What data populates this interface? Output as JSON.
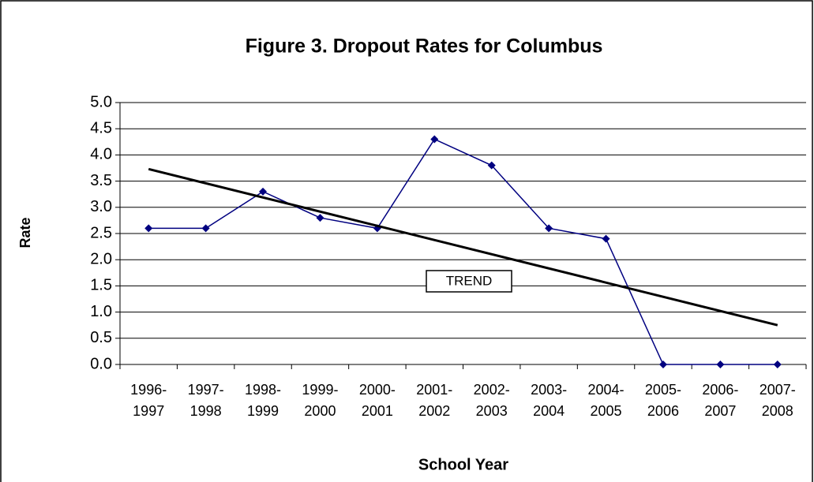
{
  "chart_data": {
    "type": "line",
    "title": "Figure 3. Dropout Rates for Columbus",
    "x_label": "School Year",
    "y_label": "Rate",
    "categories": [
      "1996-\n1997",
      "1997-\n1998",
      "1998-\n1999",
      "1999-\n2000",
      "2000-\n2001",
      "2001-\n2002",
      "2002-\n2003",
      "2003-\n2004",
      "2004-\n2005",
      "2005-\n2006",
      "2006-\n2007",
      "2007-\n2008"
    ],
    "series": [
      {
        "name": "Dropout Rate",
        "color": "#000080",
        "values": [
          2.6,
          2.6,
          3.3,
          2.8,
          2.6,
          4.3,
          3.8,
          2.6,
          2.4,
          0,
          0,
          0
        ]
      }
    ],
    "trend": {
      "label": "TREND",
      "color": "#000000",
      "start": 3.73,
      "end": 0.75
    },
    "ylim": [
      0,
      5
    ],
    "yticks": [
      {
        "value": 0,
        "label": "0.0"
      },
      {
        "value": 0.5,
        "label": "0.5"
      },
      {
        "value": 1,
        "label": "1.0"
      },
      {
        "value": 1.5,
        "label": "1.5"
      },
      {
        "value": 2,
        "label": "2.0"
      },
      {
        "value": 2.5,
        "label": "2.5"
      },
      {
        "value": 3,
        "label": "3.0"
      },
      {
        "value": 3.5,
        "label": "3.5"
      },
      {
        "value": 4,
        "label": "4.0"
      },
      {
        "value": 4.5,
        "label": "4.5"
      },
      {
        "value": 5,
        "label": "5.0"
      }
    ],
    "grid": true
  }
}
